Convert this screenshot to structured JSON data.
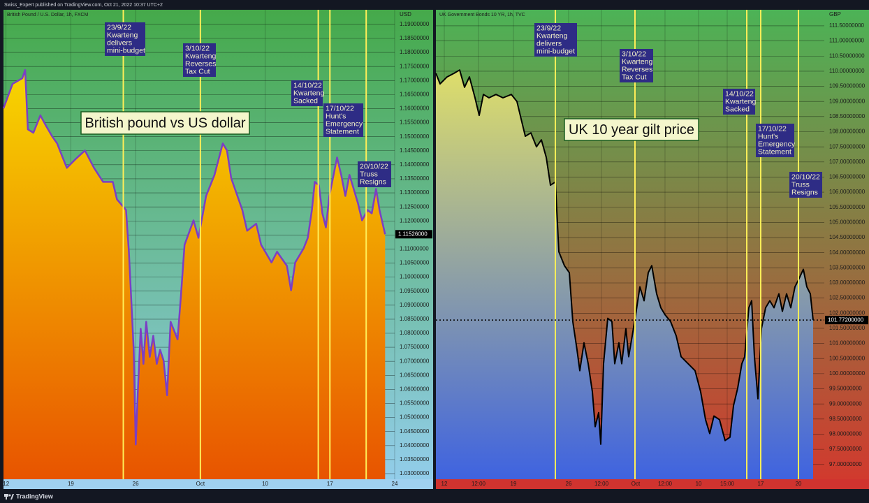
{
  "header": "Swiss_Expert published on TradingView.com, Oct 21, 2022 10:37 UTC+2",
  "footer": "TradingView",
  "chart_data": [
    {
      "type": "area",
      "title": "British Pound / U.S. Dollar, 1h, FXCM",
      "label": "British pound vs US dollar",
      "currency": "USD",
      "color": "#7b3fc4",
      "x": [
        -0.2,
        0.5,
        1.25,
        1.47,
        1.68,
        2.11,
        2.65,
        3.08,
        3.56,
        3.94,
        4.37,
        4.69,
        5.34,
        6.09,
        6.79,
        7.49,
        8.24,
        8.56,
        9.26,
        9.48,
        9.64,
        9.85,
        10.01,
        10.17,
        10.39,
        10.6,
        10.82,
        11.09,
        11.36,
        11.63,
        11.89,
        12.16,
        12.43,
        12.7,
        13.24,
        13.51,
        13.78,
        14.47,
        14.85,
        15.44,
        16.09,
        16.73,
        17.05,
        17.38,
        18.24,
        18.61,
        19.31,
        19.69,
        20.49,
        20.92,
        21.68,
        22.0,
        22.32,
        22.97,
        23.29,
        23.61,
        23.83,
        24.15,
        24.42,
        24.69,
        24.96,
        25.55,
        25.87,
        26.19,
        26.51,
        27.16,
        27.48,
        27.91,
        28.23,
        28.56,
        28.83,
        29.26
      ],
      "values": [
        1.1601,
        1.1688,
        1.1708,
        1.1738,
        1.1526,
        1.1514,
        1.1576,
        1.1539,
        1.1501,
        1.1476,
        1.1426,
        1.1389,
        1.1419,
        1.1451,
        1.1389,
        1.1339,
        1.1339,
        1.1277,
        1.1239,
        1.109,
        1.094,
        1.0741,
        1.0404,
        1.0591,
        1.0816,
        1.0691,
        1.0841,
        1.0716,
        1.0791,
        1.0691,
        1.0741,
        1.0703,
        1.0579,
        1.0841,
        1.0778,
        1.094,
        1.1115,
        1.1202,
        1.114,
        1.1289,
        1.1364,
        1.1476,
        1.1451,
        1.1352,
        1.1239,
        1.1165,
        1.119,
        1.1115,
        1.1052,
        1.109,
        1.104,
        1.0953,
        1.1052,
        1.1102,
        1.114,
        1.1239,
        1.1339,
        1.1327,
        1.1227,
        1.1177,
        1.1289,
        1.1426,
        1.1364,
        1.1289,
        1.1364,
        1.1264,
        1.1202,
        1.1239,
        1.1227,
        1.1314,
        1.1239,
        1.11526
      ],
      "last_price": {
        "value": 1.11526,
        "label": "1.11526000"
      },
      "xlim": [
        -0.2,
        30.0
      ],
      "xticks": [
        {
          "value": 0,
          "label": "12"
        },
        {
          "value": 5,
          "label": "19"
        },
        {
          "value": 10,
          "label": "26"
        },
        {
          "value": 15,
          "label": "Oct"
        },
        {
          "value": 20,
          "label": "10"
        },
        {
          "value": 25,
          "label": "17"
        },
        {
          "value": 30,
          "label": "24"
        }
      ],
      "ylim": [
        1.028,
        1.1952
      ],
      "yticks": [
        {
          "value": 1.19,
          "label": "1.19000000"
        },
        {
          "value": 1.185,
          "label": "1.18500000"
        },
        {
          "value": 1.18,
          "label": "1.18000000"
        },
        {
          "value": 1.175,
          "label": "1.17500000"
        },
        {
          "value": 1.17,
          "label": "1.17000000"
        },
        {
          "value": 1.165,
          "label": "1.16500000"
        },
        {
          "value": 1.16,
          "label": "1.16000000"
        },
        {
          "value": 1.155,
          "label": "1.15500000"
        },
        {
          "value": 1.15,
          "label": "1.15000000"
        },
        {
          "value": 1.145,
          "label": "1.14500000"
        },
        {
          "value": 1.14,
          "label": "1.14000000"
        },
        {
          "value": 1.135,
          "label": "1.13500000"
        },
        {
          "value": 1.13,
          "label": "1.13000000"
        },
        {
          "value": 1.125,
          "label": "1.12500000"
        },
        {
          "value": 1.12,
          "label": "1.12000000"
        },
        {
          "value": 1.115,
          "label": "1.11500000"
        },
        {
          "value": 1.11,
          "label": "1.11000000"
        },
        {
          "value": 1.105,
          "label": "1.10500000"
        },
        {
          "value": 1.1,
          "label": "1.10000000"
        },
        {
          "value": 1.095,
          "label": "1.09500000"
        },
        {
          "value": 1.09,
          "label": "1.09000000"
        },
        {
          "value": 1.085,
          "label": "1.08500000"
        },
        {
          "value": 1.08,
          "label": "1.08000000"
        },
        {
          "value": 1.075,
          "label": "1.07500000"
        },
        {
          "value": 1.07,
          "label": "1.07000000"
        },
        {
          "value": 1.065,
          "label": "1.06500000"
        },
        {
          "value": 1.06,
          "label": "1.06000000"
        },
        {
          "value": 1.055,
          "label": "1.05500000"
        },
        {
          "value": 1.05,
          "label": "1.05000000"
        },
        {
          "value": 1.045,
          "label": "1.04500000"
        },
        {
          "value": 1.04,
          "label": "1.04000000"
        },
        {
          "value": 1.035,
          "label": "1.03500000"
        },
        {
          "value": 1.03,
          "label": "1.03000000"
        }
      ],
      "grid": true,
      "annotations": [
        {
          "x": 9.05,
          "text": [
            "23/9/22",
            "Kwarteng",
            "delivers",
            "mini-budget"
          ]
        },
        {
          "x": 15.0,
          "text": [
            "3/10/22",
            "Kwarteng",
            "Reverses",
            "Tax Cut"
          ]
        },
        {
          "x": 24.1,
          "text": [
            "14/10/22",
            "Kwarteng",
            "Sacked"
          ]
        },
        {
          "x": 25.0,
          "text": [
            "17/10/22",
            "Hunt's",
            "Emergency",
            "Statement"
          ]
        },
        {
          "x": 27.8,
          "text": [
            "20/10/22",
            "Truss",
            "Resigns"
          ]
        }
      ]
    },
    {
      "type": "area",
      "title": "UK Government Bonds 10 YR, 1h, TVC",
      "label": "UK 10 year gilt price",
      "currency": "GBP",
      "color": "#000000",
      "x": [
        0,
        1.08,
        2.88,
        4.68,
        6.12,
        7.37,
        8.63,
        10.07,
        11.15,
        12.23,
        13.67,
        15.47,
        17.27,
        19.42,
        20.86,
        21.94,
        23.02,
        24.46,
        25.9,
        27.16,
        28.42,
        29.5,
        30.76,
        31.65,
        33.09,
        34.35,
        35.25,
        36.33,
        37.05,
        38.13,
        39.21,
        40.29,
        41.01,
        41.91,
        42.45,
        43.17,
        44.24,
        45.32,
        46.04,
        47.12,
        47.84,
        48.92,
        49.64,
        50.54,
        51.44,
        52.52,
        53.6,
        54.68,
        55.58,
        56.83,
        57.91,
        58.99,
        60.43,
        61.87,
        63.13,
        64.93,
        66.73,
        68.17,
        69.42,
        70.5,
        71.58,
        73.02,
        74.46,
        75.72,
        76.62,
        77.7,
        78.78,
        79.5,
        80.58,
        81.29,
        82.01,
        82.91,
        83.81,
        84.89,
        85.97,
        87.05,
        88.31,
        89.21,
        90.29,
        91.37,
        92.45,
        93.35,
        94.6,
        95.5,
        96.4,
        97.12
      ],
      "values": [
        109.93,
        109.58,
        109.81,
        109.93,
        110.04,
        109.47,
        109.81,
        109.12,
        108.54,
        109.23,
        109.12,
        109.23,
        109.12,
        109.23,
        109.0,
        108.42,
        107.85,
        107.96,
        107.5,
        107.73,
        107.15,
        106.23,
        106.34,
        104.03,
        103.57,
        103.34,
        101.72,
        100.79,
        100.1,
        101.02,
        100.33,
        99.4,
        98.25,
        98.71,
        97.67,
        100.33,
        101.83,
        101.72,
        100.33,
        101.02,
        100.33,
        101.49,
        100.56,
        101.25,
        101.95,
        102.87,
        102.41,
        103.34,
        103.57,
        102.64,
        102.18,
        101.95,
        101.72,
        101.25,
        100.56,
        100.33,
        100.1,
        99.4,
        98.48,
        98.02,
        98.6,
        98.48,
        97.79,
        97.9,
        98.94,
        99.52,
        100.33,
        100.56,
        102.18,
        102.41,
        100.56,
        99.17,
        101.49,
        102.18,
        102.41,
        102.18,
        102.64,
        102.06,
        102.64,
        102.18,
        102.87,
        103.1,
        103.45,
        102.87,
        102.64,
        101.772
      ],
      "last_price": {
        "value": 101.772,
        "label": "101.77200000"
      },
      "xlim": [
        0,
        100
      ],
      "xticks": [
        {
          "value": 2.16,
          "label": "12"
        },
        {
          "value": 10.97,
          "label": "12:00"
        },
        {
          "value": 19.96,
          "label": "19"
        },
        {
          "value": 34.17,
          "label": "26"
        },
        {
          "value": 42.63,
          "label": "12:00"
        },
        {
          "value": 51.44,
          "label": "Oct"
        },
        {
          "value": 58.99,
          "label": "12:00"
        },
        {
          "value": 67.63,
          "label": "10"
        },
        {
          "value": 75.0,
          "label": "15:00"
        },
        {
          "value": 83.63,
          "label": "17"
        },
        {
          "value": 93.35,
          "label": "20"
        }
      ],
      "ylim": [
        96.51,
        112.03
      ],
      "yticks": [
        {
          "value": 111.5,
          "label": "111.50000000"
        },
        {
          "value": 111,
          "label": "111.00000000"
        },
        {
          "value": 110.5,
          "label": "110.50000000"
        },
        {
          "value": 110,
          "label": "110.00000000"
        },
        {
          "value": 109.5,
          "label": "109.50000000"
        },
        {
          "value": 109,
          "label": "109.00000000"
        },
        {
          "value": 108.5,
          "label": "108.50000000"
        },
        {
          "value": 108,
          "label": "108.00000000"
        },
        {
          "value": 107.5,
          "label": "107.50000000"
        },
        {
          "value": 107,
          "label": "107.00000000"
        },
        {
          "value": 106.5,
          "label": "106.50000000"
        },
        {
          "value": 106,
          "label": "106.00000000"
        },
        {
          "value": 105.5,
          "label": "105.50000000"
        },
        {
          "value": 105,
          "label": "105.00000000"
        },
        {
          "value": 104.5,
          "label": "104.50000000"
        },
        {
          "value": 104,
          "label": "104.00000000"
        },
        {
          "value": 103.5,
          "label": "103.50000000"
        },
        {
          "value": 103,
          "label": "103.00000000"
        },
        {
          "value": 102.5,
          "label": "102.50000000"
        },
        {
          "value": 102,
          "label": "102.00000000"
        },
        {
          "value": 101.5,
          "label": "101.50000000"
        },
        {
          "value": 101,
          "label": "101.00000000"
        },
        {
          "value": 100.5,
          "label": "100.50000000"
        },
        {
          "value": 100,
          "label": "100.00000000"
        },
        {
          "value": 99.5,
          "label": "99.50000000"
        },
        {
          "value": 99,
          "label": "99.00000000"
        },
        {
          "value": 98.5,
          "label": "98.50000000"
        },
        {
          "value": 98,
          "label": "98.00000000"
        },
        {
          "value": 97.5,
          "label": "97.50000000"
        },
        {
          "value": 97,
          "label": "97.00000000"
        }
      ],
      "grid": true,
      "annotations": [
        {
          "x": 30.76,
          "text": [
            "23/9/22",
            "Kwarteng",
            "delivers",
            "mini-budget"
          ]
        },
        {
          "x": 51.26,
          "text": [
            "3/10/22",
            "Kwarteng",
            "Reverses",
            "Tax Cut"
          ]
        },
        {
          "x": 80.04,
          "text": [
            "14/10/22",
            "Kwarteng",
            "Sacked"
          ]
        },
        {
          "x": 83.63,
          "text": [
            "17/10/22",
            "Hunt's",
            "Emergency",
            "Statement"
          ]
        },
        {
          "x": 93.35,
          "text": [
            "20/10/22",
            "Truss",
            "Resigns"
          ]
        }
      ]
    }
  ]
}
